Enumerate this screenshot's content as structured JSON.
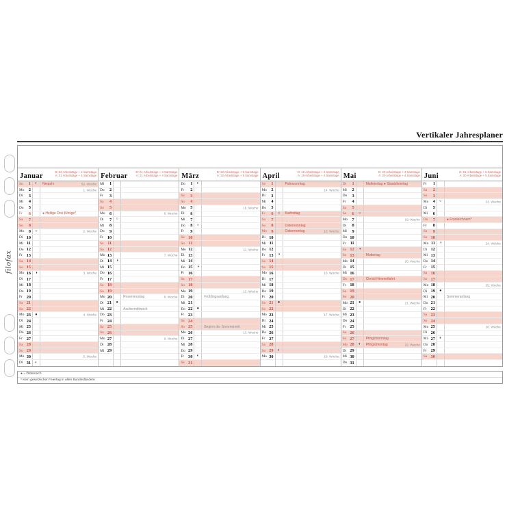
{
  "title": "Vertikaler Jahresplaner",
  "brand": "filofax",
  "legend": {
    "austria": "● = Österreich",
    "asterisk": "* Kein gesetzlicher Feiertag in allen Bundesländern"
  },
  "colors": {
    "accent_red": "#bf4f44",
    "weekend_row_bg": "#f6d5cd",
    "stats_red": "#cf6a5e",
    "note_gray": "#8d8d8d"
  },
  "moon_glyphs": {
    "fq": "◐",
    "fm": "○",
    "lq": "◑",
    "nm": "●"
  },
  "moon_names": {
    "fq": "first-quarter-moon-icon",
    "fm": "full-moon-icon",
    "lq": "last-quarter-moon-icon",
    "nm": "new-moon-icon"
  },
  "row_count": 31,
  "months": [
    {
      "id": "januar",
      "name": "Januar",
      "stats": [
        "D: 22 Arbeitstage + 4 Samstage",
        "A: 21 Arbeitstage + 4 Samstage"
      ],
      "days": [
        {
          "d": 1,
          "w": "So",
          "pink": true,
          "moon": "fq",
          "note": "Neujahr",
          "noteColor": "red",
          "week": "52. Woche"
        },
        {
          "d": 2,
          "w": "Mo",
          "week": "1. Woche"
        },
        {
          "d": 3,
          "w": "Di"
        },
        {
          "d": 4,
          "w": "Mi"
        },
        {
          "d": 5,
          "w": "Do"
        },
        {
          "d": 6,
          "w": "Fr",
          "red": true,
          "note": "● Heilige Drei Könige*",
          "noteColor": "red"
        },
        {
          "d": 7,
          "w": "Sa",
          "pink": true
        },
        {
          "d": 8,
          "w": "So",
          "pink": true
        },
        {
          "d": 9,
          "w": "Mo",
          "moon": "fm",
          "week": "2. Woche"
        },
        {
          "d": 10,
          "w": "Di"
        },
        {
          "d": 11,
          "w": "Mi"
        },
        {
          "d": 12,
          "w": "Do"
        },
        {
          "d": 13,
          "w": "Fr"
        },
        {
          "d": 14,
          "w": "Sa",
          "pink": true
        },
        {
          "d": 15,
          "w": "So",
          "pink": true
        },
        {
          "d": 16,
          "w": "Mo",
          "moon": "lq",
          "week": "3. Woche"
        },
        {
          "d": 17,
          "w": "Di"
        },
        {
          "d": 18,
          "w": "Mi"
        },
        {
          "d": 19,
          "w": "Do"
        },
        {
          "d": 20,
          "w": "Fr"
        },
        {
          "d": 21,
          "w": "Sa",
          "pink": true
        },
        {
          "d": 22,
          "w": "So",
          "pink": true
        },
        {
          "d": 23,
          "w": "Mo",
          "moon": "nm",
          "week": "4. Woche"
        },
        {
          "d": 24,
          "w": "Di"
        },
        {
          "d": 25,
          "w": "Mi"
        },
        {
          "d": 26,
          "w": "Do"
        },
        {
          "d": 27,
          "w": "Fr"
        },
        {
          "d": 28,
          "w": "Sa",
          "pink": true
        },
        {
          "d": 29,
          "w": "So",
          "pink": true
        },
        {
          "d": 30,
          "w": "Mo",
          "week": "5. Woche"
        },
        {
          "d": 31,
          "w": "Di",
          "moon": "fq"
        }
      ]
    },
    {
      "id": "februar",
      "name": "Februar",
      "stats": [
        "D: 21 Arbeitstage + 4 Samstage",
        "A: 21 Arbeitstage + 4 Samstage"
      ],
      "days": [
        {
          "d": 1,
          "w": "Mi"
        },
        {
          "d": 2,
          "w": "Do"
        },
        {
          "d": 3,
          "w": "Fr"
        },
        {
          "d": 4,
          "w": "Sa",
          "pink": true
        },
        {
          "d": 5,
          "w": "So",
          "pink": true
        },
        {
          "d": 6,
          "w": "Mo",
          "week": "6. Woche"
        },
        {
          "d": 7,
          "w": "Di",
          "moon": "fm"
        },
        {
          "d": 8,
          "w": "Mi"
        },
        {
          "d": 9,
          "w": "Do"
        },
        {
          "d": 10,
          "w": "Fr"
        },
        {
          "d": 11,
          "w": "Sa",
          "pink": true
        },
        {
          "d": 12,
          "w": "So",
          "pink": true
        },
        {
          "d": 13,
          "w": "Mo",
          "week": "7. Woche"
        },
        {
          "d": 14,
          "w": "Di",
          "moon": "lq"
        },
        {
          "d": 15,
          "w": "Mi"
        },
        {
          "d": 16,
          "w": "Do"
        },
        {
          "d": 17,
          "w": "Fr"
        },
        {
          "d": 18,
          "w": "Sa",
          "pink": true
        },
        {
          "d": 19,
          "w": "So",
          "pink": true
        },
        {
          "d": 20,
          "w": "Mo",
          "note": "Rosenmontag",
          "noteColor": "gray",
          "week": "8. Woche"
        },
        {
          "d": 21,
          "w": "Di",
          "moon": "nm"
        },
        {
          "d": 22,
          "w": "Mi",
          "note": "Aschermittwoch",
          "noteColor": "gray"
        },
        {
          "d": 23,
          "w": "Do"
        },
        {
          "d": 24,
          "w": "Fr"
        },
        {
          "d": 25,
          "w": "Sa",
          "pink": true
        },
        {
          "d": 26,
          "w": "So",
          "pink": true
        },
        {
          "d": 27,
          "w": "Mo",
          "week": "9. Woche"
        },
        {
          "d": 28,
          "w": "Di"
        },
        {
          "d": 29,
          "w": "Mi"
        }
      ]
    },
    {
      "id": "maerz",
      "name": "März",
      "stats": [
        "D: 22 Arbeitstage + 5 Samstage",
        "A: 22 Arbeitstage + 5 Samstage"
      ],
      "days": [
        {
          "d": 1,
          "w": "Do",
          "moon": "fq"
        },
        {
          "d": 2,
          "w": "Fr"
        },
        {
          "d": 3,
          "w": "Sa",
          "pink": true
        },
        {
          "d": 4,
          "w": "So",
          "pink": true
        },
        {
          "d": 5,
          "w": "Mo",
          "week": "10. Woche"
        },
        {
          "d": 6,
          "w": "Di"
        },
        {
          "d": 7,
          "w": "Mi"
        },
        {
          "d": 8,
          "w": "Do",
          "moon": "fm"
        },
        {
          "d": 9,
          "w": "Fr"
        },
        {
          "d": 10,
          "w": "Sa",
          "pink": true
        },
        {
          "d": 11,
          "w": "So",
          "pink": true
        },
        {
          "d": 12,
          "w": "Mo",
          "week": "11. Woche"
        },
        {
          "d": 13,
          "w": "Di"
        },
        {
          "d": 14,
          "w": "Mi"
        },
        {
          "d": 15,
          "w": "Do",
          "moon": "lq"
        },
        {
          "d": 16,
          "w": "Fr"
        },
        {
          "d": 17,
          "w": "Sa",
          "pink": true
        },
        {
          "d": 18,
          "w": "So",
          "pink": true
        },
        {
          "d": 19,
          "w": "Mo",
          "week": "12. Woche"
        },
        {
          "d": 20,
          "w": "Di",
          "note": "Frühlingsanfang",
          "noteColor": "gray"
        },
        {
          "d": 21,
          "w": "Mi"
        },
        {
          "d": 22,
          "w": "Do",
          "moon": "nm"
        },
        {
          "d": 23,
          "w": "Fr"
        },
        {
          "d": 24,
          "w": "Sa",
          "pink": true
        },
        {
          "d": 25,
          "w": "So",
          "pink": true,
          "note": "Beginn der Sommerzeit",
          "noteColor": "gray"
        },
        {
          "d": 26,
          "w": "Mo",
          "week": "13. Woche"
        },
        {
          "d": 27,
          "w": "Di"
        },
        {
          "d": 28,
          "w": "Mi"
        },
        {
          "d": 29,
          "w": "Do"
        },
        {
          "d": 30,
          "w": "Fr",
          "moon": "fq"
        },
        {
          "d": 31,
          "w": "Sa",
          "pink": true
        }
      ]
    },
    {
      "id": "april",
      "name": "April",
      "stats": [
        "D: 19 Arbeitstage + 4 Samstage",
        "A: 19 Arbeitstage + 4 Samstage"
      ],
      "days": [
        {
          "d": 1,
          "w": "So",
          "pink": true,
          "note": "Palmsonntag",
          "noteColor": "red"
        },
        {
          "d": 2,
          "w": "Mo",
          "week": "14. Woche"
        },
        {
          "d": 3,
          "w": "Di"
        },
        {
          "d": 4,
          "w": "Mi"
        },
        {
          "d": 5,
          "w": "Do"
        },
        {
          "d": 6,
          "w": "Fr",
          "pink": true,
          "moon": "fm",
          "note": "Karfreitag",
          "noteColor": "red"
        },
        {
          "d": 7,
          "w": "Sa",
          "pink": true
        },
        {
          "d": 8,
          "w": "So",
          "pink": true,
          "note": "Ostersonntag",
          "noteColor": "red"
        },
        {
          "d": 9,
          "w": "Mo",
          "pink": true,
          "note": "Ostermontag",
          "noteColor": "red",
          "week": "15. Woche"
        },
        {
          "d": 10,
          "w": "Di"
        },
        {
          "d": 11,
          "w": "Mi"
        },
        {
          "d": 12,
          "w": "Do"
        },
        {
          "d": 13,
          "w": "Fr",
          "moon": "lq"
        },
        {
          "d": 14,
          "w": "Sa",
          "pink": true
        },
        {
          "d": 15,
          "w": "So",
          "pink": true
        },
        {
          "d": 16,
          "w": "Mo",
          "week": "16. Woche"
        },
        {
          "d": 17,
          "w": "Di"
        },
        {
          "d": 18,
          "w": "Mi"
        },
        {
          "d": 19,
          "w": "Do"
        },
        {
          "d": 20,
          "w": "Fr"
        },
        {
          "d": 21,
          "w": "Sa",
          "pink": true,
          "moon": "nm"
        },
        {
          "d": 22,
          "w": "So",
          "pink": true
        },
        {
          "d": 23,
          "w": "Mo",
          "week": "17. Woche"
        },
        {
          "d": 24,
          "w": "Di"
        },
        {
          "d": 25,
          "w": "Mi"
        },
        {
          "d": 26,
          "w": "Do"
        },
        {
          "d": 27,
          "w": "Fr"
        },
        {
          "d": 28,
          "w": "Sa",
          "pink": true
        },
        {
          "d": 29,
          "w": "So",
          "pink": true,
          "moon": "fq"
        },
        {
          "d": 30,
          "w": "Mo",
          "week": "18. Woche"
        }
      ]
    },
    {
      "id": "mai",
      "name": "Mai",
      "stats": [
        "D: 20 Arbeitstage + 4 Samstage",
        "A: 20 Arbeitstage + 4 Samstage"
      ],
      "days": [
        {
          "d": 1,
          "w": "Di",
          "pink": true,
          "note": "Maifeiertag  ● Staatsfeiertag",
          "noteColor": "red"
        },
        {
          "d": 2,
          "w": "Mi"
        },
        {
          "d": 3,
          "w": "Do"
        },
        {
          "d": 4,
          "w": "Fr"
        },
        {
          "d": 5,
          "w": "Sa",
          "pink": true
        },
        {
          "d": 6,
          "w": "So",
          "pink": true,
          "moon": "fm"
        },
        {
          "d": 7,
          "w": "Mo",
          "week": "19. Woche"
        },
        {
          "d": 8,
          "w": "Di"
        },
        {
          "d": 9,
          "w": "Mi"
        },
        {
          "d": 10,
          "w": "Do"
        },
        {
          "d": 11,
          "w": "Fr"
        },
        {
          "d": 12,
          "w": "Sa",
          "pink": true,
          "moon": "lq"
        },
        {
          "d": 13,
          "w": "So",
          "pink": true,
          "note": "Muttertag",
          "noteColor": "red"
        },
        {
          "d": 14,
          "w": "Mo",
          "week": "20. Woche"
        },
        {
          "d": 15,
          "w": "Di"
        },
        {
          "d": 16,
          "w": "Mi"
        },
        {
          "d": 17,
          "w": "Do",
          "pink": true,
          "note": "Christi Himmelfahrt",
          "noteColor": "red"
        },
        {
          "d": 18,
          "w": "Fr"
        },
        {
          "d": 19,
          "w": "Sa",
          "pink": true
        },
        {
          "d": 20,
          "w": "So",
          "pink": true
        },
        {
          "d": 21,
          "w": "Mo",
          "moon": "nm",
          "week": "21. Woche"
        },
        {
          "d": 22,
          "w": "Di"
        },
        {
          "d": 23,
          "w": "Mi"
        },
        {
          "d": 24,
          "w": "Do"
        },
        {
          "d": 25,
          "w": "Fr"
        },
        {
          "d": 26,
          "w": "Sa",
          "pink": true
        },
        {
          "d": 27,
          "w": "So",
          "pink": true,
          "note": "Pfingstsonntag",
          "noteColor": "red"
        },
        {
          "d": 28,
          "w": "Mo",
          "pink": true,
          "moon": "fq",
          "note": "Pfingstmontag",
          "noteColor": "red",
          "week": "22. Woche"
        },
        {
          "d": 29,
          "w": "Di"
        },
        {
          "d": 30,
          "w": "Mi"
        },
        {
          "d": 31,
          "w": "Do"
        }
      ]
    },
    {
      "id": "juni",
      "name": "Juni",
      "stats": [
        "D: 21 Arbeitstage + 5 Samstage",
        "A: 20 Arbeitstage + 5 Samstage"
      ],
      "days": [
        {
          "d": 1,
          "w": "Fr"
        },
        {
          "d": 2,
          "w": "Sa",
          "pink": true
        },
        {
          "d": 3,
          "w": "So",
          "pink": true
        },
        {
          "d": 4,
          "w": "Mo",
          "moon": "fm",
          "week": "23. Woche"
        },
        {
          "d": 5,
          "w": "Di"
        },
        {
          "d": 6,
          "w": "Mi"
        },
        {
          "d": 7,
          "w": "Do",
          "pink": true,
          "note": "● Fronleichnam*",
          "noteColor": "red"
        },
        {
          "d": 8,
          "w": "Fr"
        },
        {
          "d": 9,
          "w": "Sa",
          "pink": true
        },
        {
          "d": 10,
          "w": "So",
          "pink": true
        },
        {
          "d": 11,
          "w": "Mo",
          "moon": "lq",
          "week": "24. Woche"
        },
        {
          "d": 12,
          "w": "Di"
        },
        {
          "d": 13,
          "w": "Mi"
        },
        {
          "d": 14,
          "w": "Do"
        },
        {
          "d": 15,
          "w": "Fr"
        },
        {
          "d": 16,
          "w": "Sa",
          "pink": true
        },
        {
          "d": 17,
          "w": "So",
          "pink": true
        },
        {
          "d": 18,
          "w": "Mo",
          "week": "25. Woche"
        },
        {
          "d": 19,
          "w": "Di",
          "moon": "nm"
        },
        {
          "d": 20,
          "w": "Mi",
          "note": "Sommeranfang",
          "noteColor": "gray"
        },
        {
          "d": 21,
          "w": "Do"
        },
        {
          "d": 22,
          "w": "Fr"
        },
        {
          "d": 23,
          "w": "Sa",
          "pink": true
        },
        {
          "d": 24,
          "w": "So",
          "pink": true
        },
        {
          "d": 25,
          "w": "Mo",
          "week": "26. Woche"
        },
        {
          "d": 26,
          "w": "Di"
        },
        {
          "d": 27,
          "w": "Mi",
          "moon": "fq"
        },
        {
          "d": 28,
          "w": "Do"
        },
        {
          "d": 29,
          "w": "Fr"
        },
        {
          "d": 30,
          "w": "Sa",
          "pink": true
        }
      ]
    }
  ]
}
